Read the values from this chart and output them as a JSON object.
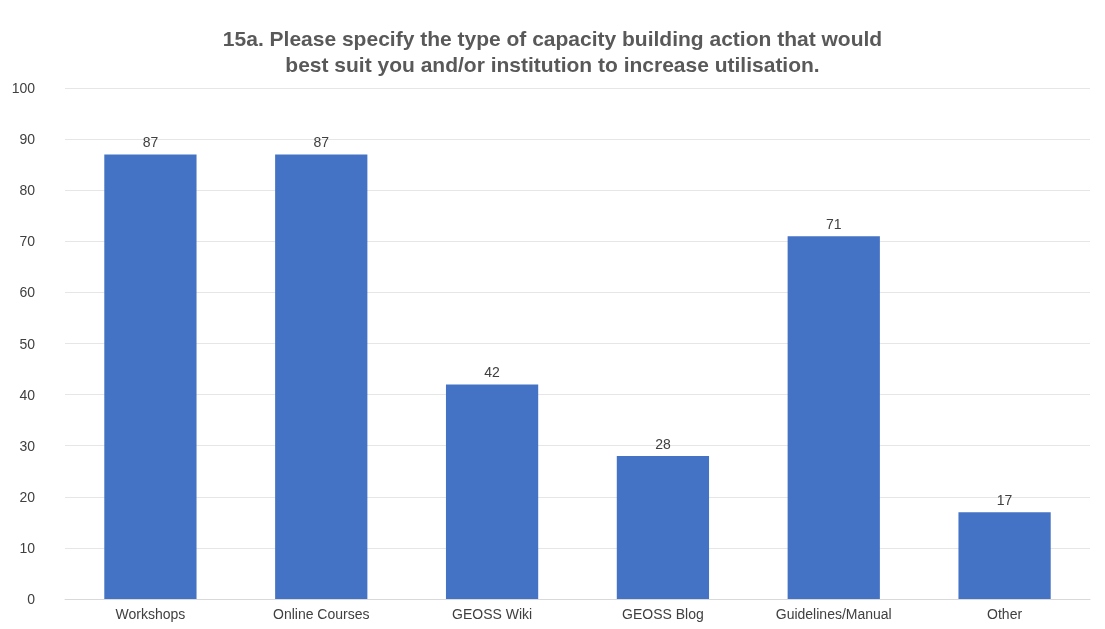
{
  "chart_data": {
    "type": "bar",
    "title": "15a. Please specify the type of capacity building action that would\nbest suit you and/or institution to increase utilisation.",
    "categories": [
      "Workshops",
      "Online Courses",
      "GEOSS Wiki",
      "GEOSS Blog",
      "Guidelines/Manual",
      "Other"
    ],
    "values": [
      87,
      87,
      42,
      28,
      71,
      17
    ],
    "color": "#4472c4",
    "ylim": [
      0,
      100
    ],
    "yticks": [
      0,
      10,
      20,
      30,
      40,
      50,
      60,
      70,
      80,
      90,
      100
    ],
    "grid": true,
    "data_labels": true
  }
}
